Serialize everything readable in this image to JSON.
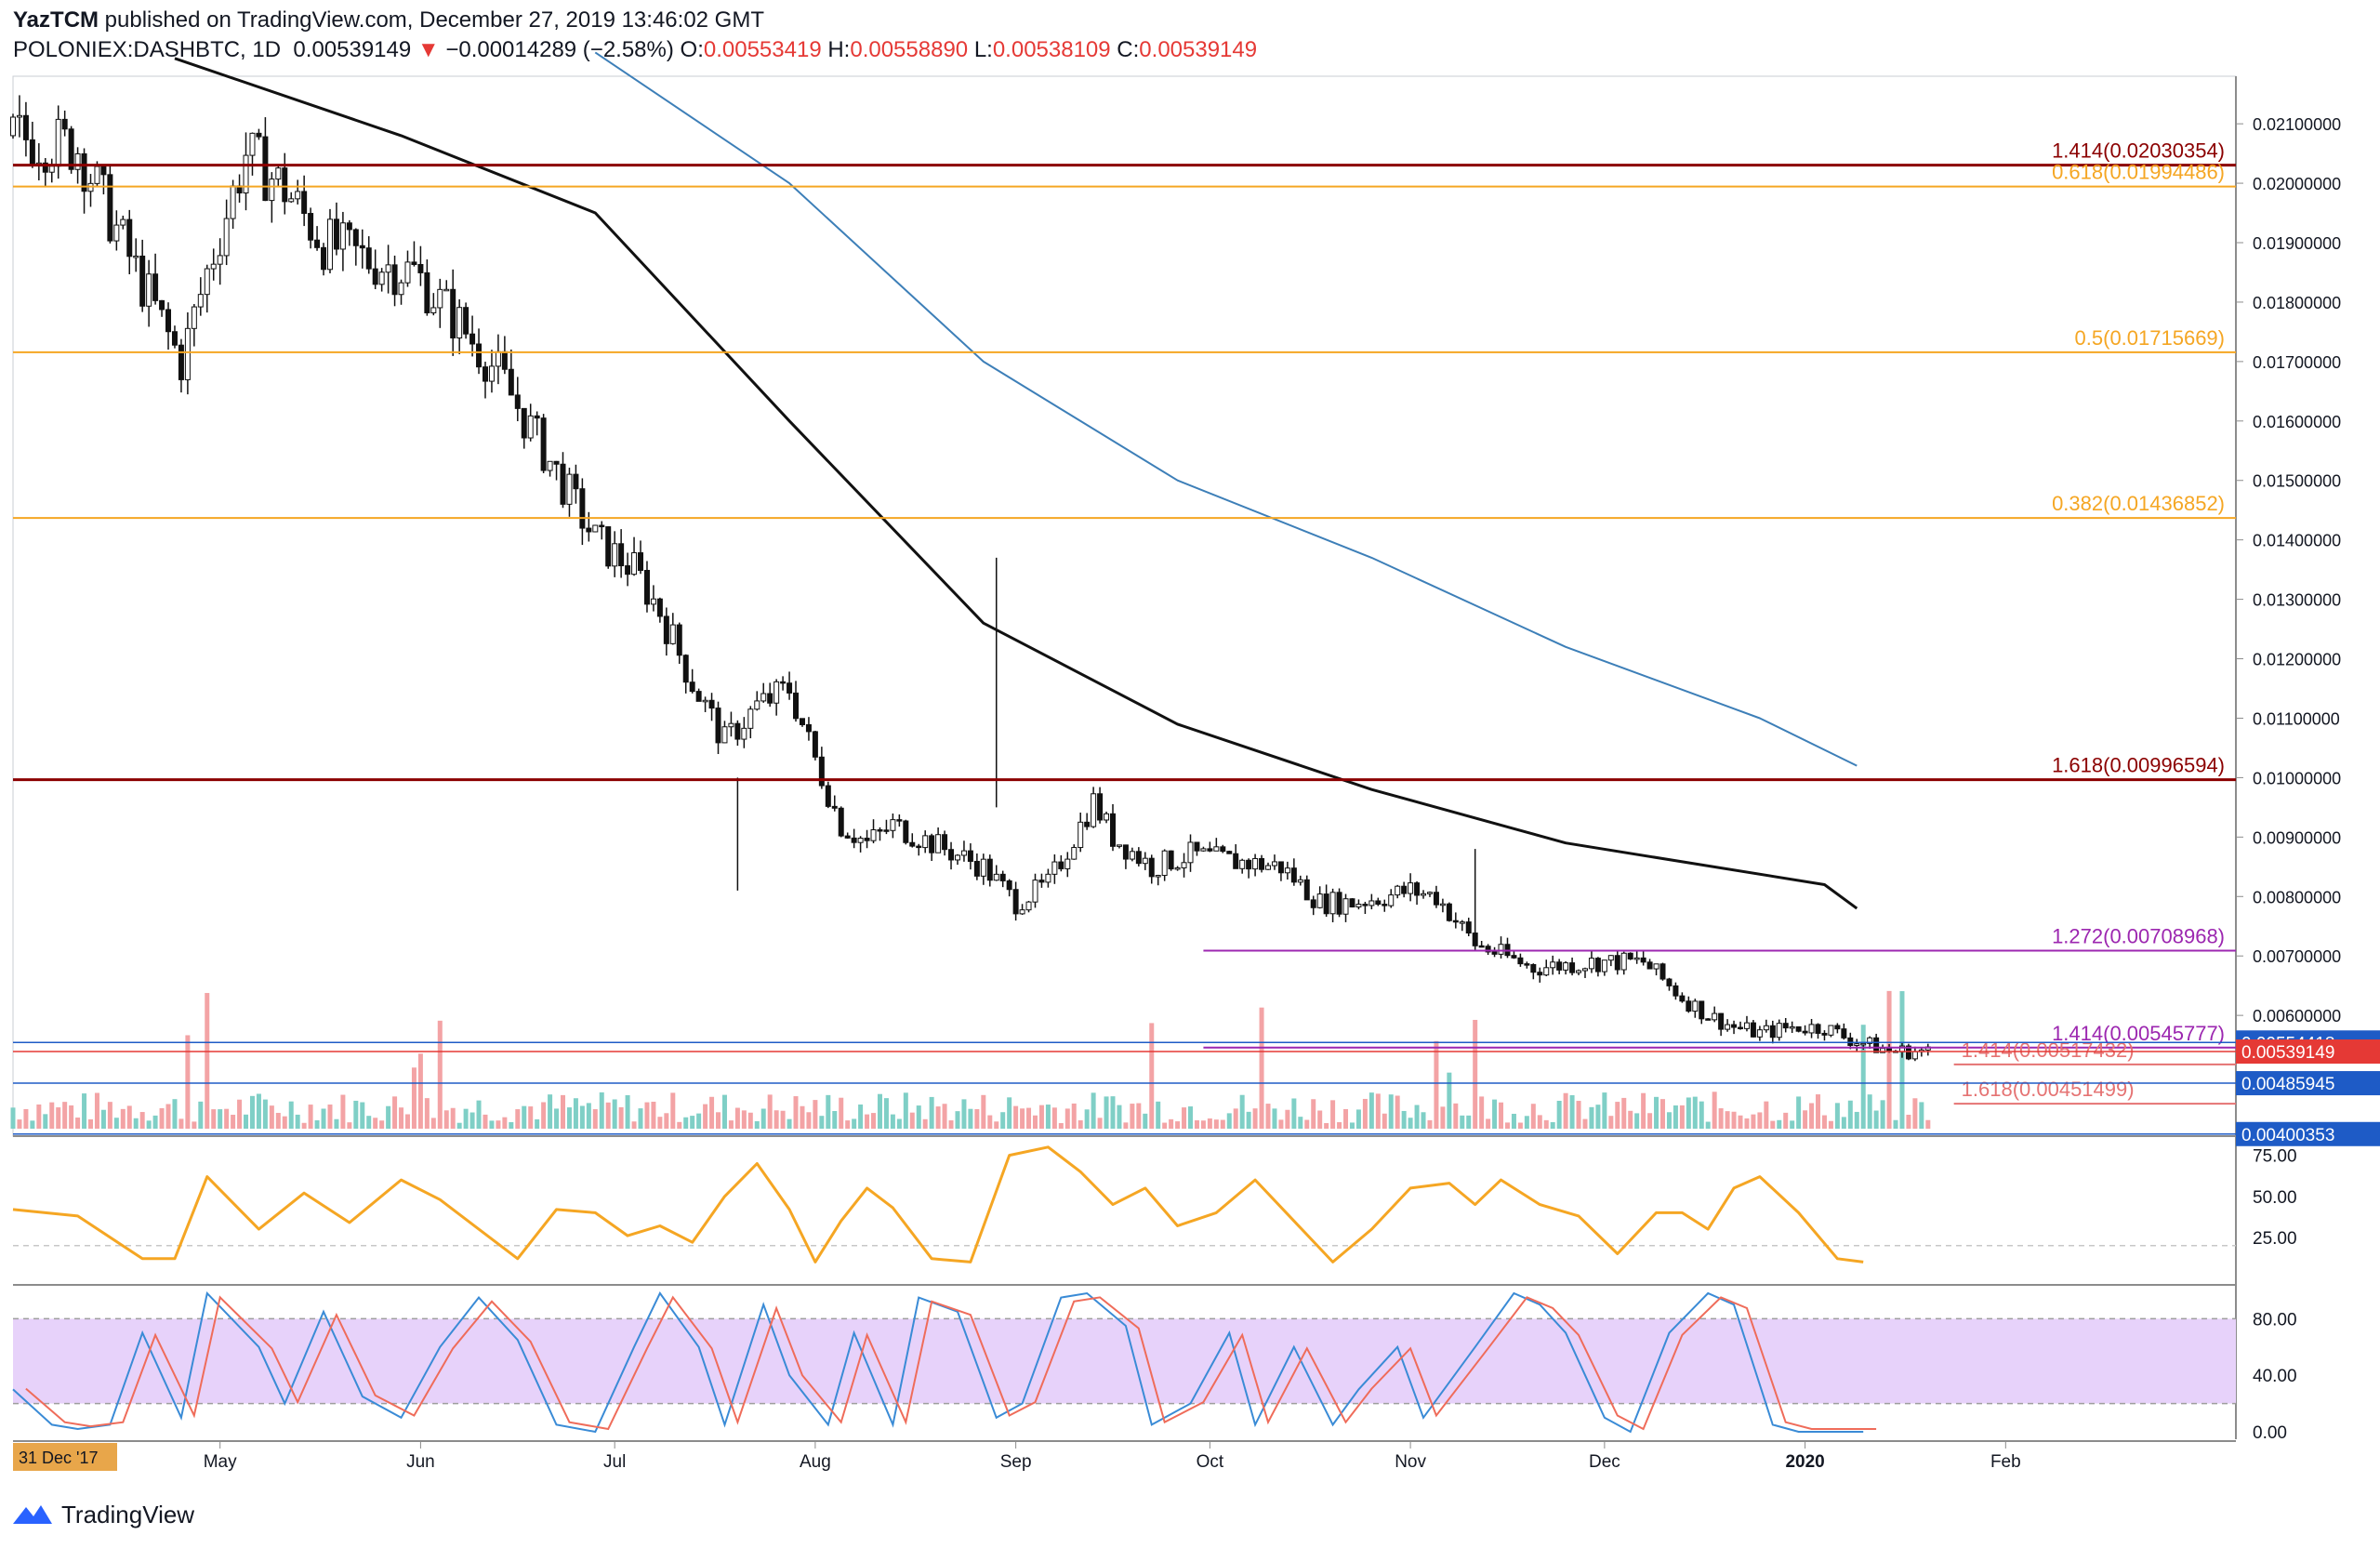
{
  "header": {
    "author": "YazTCM",
    "published": " published on TradingView.com, December 27, 2019 13:46:02 GMT",
    "symbol": "POLONIEX:DASHBTC, 1D",
    "last": "0.00539149",
    "change": "−0.00014289 (−2.58%)",
    "o_label": "O:",
    "o": "0.00553419",
    "h_label": "H:",
    "h": "0.00558890",
    "l_label": "L:",
    "l": "0.00538109",
    "c_label": "C:",
    "c": "0.00539149"
  },
  "footer": {
    "brand": "TradingView",
    "logo_icon": "tradingview-logo-icon"
  },
  "chart_data": {
    "type": "candlestick",
    "xaxis": {
      "start_label": "31 Dec '17",
      "month_labels": [
        "May",
        "Jun",
        "Jul",
        "Aug",
        "Sep",
        "Oct",
        "Nov",
        "Dec",
        "2020",
        "Feb"
      ]
    },
    "price_axis": {
      "ticks": [
        "0.02100000",
        "0.02000000",
        "0.01900000",
        "0.01800000",
        "0.01700000",
        "0.01600000",
        "0.01500000",
        "0.01400000",
        "0.01300000",
        "0.01200000",
        "0.01100000",
        "0.01000000",
        "0.00900000",
        "0.00800000",
        "0.00700000",
        "0.00600000"
      ],
      "tick_values": [
        0.021,
        0.02,
        0.019,
        0.018,
        0.017,
        0.016,
        0.015,
        0.014,
        0.013,
        0.012,
        0.011,
        0.01,
        0.009,
        0.008,
        0.007,
        0.006
      ],
      "range": [
        0.004,
        0.0218
      ],
      "badges": [
        {
          "text": "0.00554418",
          "value": 0.00554418,
          "color": "#1e5bc6"
        },
        {
          "text": "0.00539149",
          "value": 0.00539149,
          "color": "#e53935"
        },
        {
          "text": "0.00485945",
          "value": 0.00485945,
          "color": "#1e5bc6"
        },
        {
          "text": "0.00400353",
          "value": 0.00400353,
          "color": "#1e5bc6"
        }
      ]
    },
    "horizontal_levels": [
      {
        "label": "1.414(0.02030354)",
        "value": 0.02030354,
        "color": "#8b0000",
        "width": 3,
        "label_color": "#8b0000"
      },
      {
        "label": "0.618(0.01994486)",
        "value": 0.01994486,
        "color": "#f5a623",
        "width": 2,
        "label_color": "#f5a623"
      },
      {
        "label": "0.5(0.01715669)",
        "value": 0.01715669,
        "color": "#f5a623",
        "width": 2,
        "label_color": "#f5a623"
      },
      {
        "label": "0.382(0.01436852)",
        "value": 0.01436852,
        "color": "#f5a623",
        "width": 2,
        "label_color": "#f5a623"
      },
      {
        "label": "1.618(0.00996594)",
        "value": 0.00996594,
        "color": "#8b0000",
        "width": 3,
        "label_color": "#8b0000"
      },
      {
        "label": "1.272(0.00708968)",
        "value": 0.00708968,
        "color": "#9c27b0",
        "width": 2,
        "label_color": "#9c27b0",
        "from_day": 184
      },
      {
        "label": "1.414(0.00545777)",
        "value": 0.00545777,
        "color": "#9c27b0",
        "width": 2,
        "label_color": "#9c27b0",
        "from_day": 184
      },
      {
        "label": "1.414(0.00517432)",
        "value": 0.00517432,
        "color": "#e57373",
        "width": 2,
        "label_color": "#e57373",
        "from_day": 300,
        "label_left": true
      },
      {
        "label": "1.618(0.00451499)",
        "value": 0.00451499,
        "color": "#e57373",
        "width": 2,
        "label_color": "#e57373",
        "from_day": 300,
        "label_left": true
      }
    ],
    "close_series": {
      "name": "DASHBTC daily close (approx.)",
      "x_days": [
        0,
        10,
        20,
        26,
        30,
        36,
        42,
        48,
        55,
        62,
        70,
        75,
        82,
        90,
        96,
        100,
        105,
        110,
        115,
        120,
        124,
        128,
        132,
        136,
        140,
        150,
        155,
        160,
        164,
        167,
        170,
        176,
        182,
        188,
        196,
        202,
        207,
        212,
        216,
        220,
        226,
        235,
        245,
        252,
        258,
        262,
        266,
        268,
        270,
        275,
        280,
        284,
        287,
        290,
        296
      ],
      "values": [
        0.0208,
        0.0206,
        0.0183,
        0.017,
        0.0185,
        0.0205,
        0.0199,
        0.019,
        0.0187,
        0.0185,
        0.0175,
        0.0168,
        0.0155,
        0.014,
        0.0135,
        0.0128,
        0.0116,
        0.0106,
        0.0112,
        0.0115,
        0.0103,
        0.0092,
        0.0089,
        0.0092,
        0.009,
        0.0085,
        0.0079,
        0.0082,
        0.009,
        0.0096,
        0.009,
        0.0085,
        0.0087,
        0.0086,
        0.0085,
        0.0079,
        0.0079,
        0.008,
        0.0081,
        0.008,
        0.0072,
        0.0068,
        0.0069,
        0.0069,
        0.0063,
        0.006,
        0.0058,
        0.00575,
        0.0057,
        0.0058,
        0.0058,
        0.0056,
        0.0055,
        0.0054,
        0.00539149
      ]
    },
    "ma_200_black": {
      "x_days": [
        25,
        60,
        90,
        120,
        150,
        180,
        210,
        240,
        280,
        285
      ],
      "values": [
        0.0221,
        0.0208,
        0.0195,
        0.016,
        0.0126,
        0.0109,
        0.0098,
        0.0089,
        0.0082,
        0.0078
      ]
    },
    "ma_blue": {
      "x_days": [
        90,
        120,
        150,
        180,
        210,
        240,
        270,
        285
      ],
      "values": [
        0.0222,
        0.02,
        0.017,
        0.015,
        0.0137,
        0.0122,
        0.011,
        0.0102
      ]
    },
    "rsi": {
      "ticks": [
        "75.00",
        "50.00",
        "25.00"
      ],
      "tick_values": [
        75,
        50,
        25
      ],
      "range": [
        0,
        85
      ],
      "x_days": [
        0,
        10,
        20,
        25,
        30,
        38,
        45,
        52,
        60,
        66,
        72,
        78,
        84,
        90,
        95,
        100,
        105,
        110,
        115,
        120,
        124,
        128,
        132,
        136,
        142,
        148,
        154,
        160,
        165,
        170,
        175,
        180,
        186,
        192,
        198,
        204,
        210,
        216,
        222,
        226,
        230,
        236,
        242,
        248,
        254,
        258,
        262,
        266,
        270,
        276,
        282,
        286
      ],
      "values": [
        42,
        38,
        12,
        12,
        62,
        30,
        52,
        34,
        60,
        48,
        30,
        12,
        42,
        40,
        26,
        32,
        22,
        50,
        70,
        42,
        10,
        35,
        55,
        43,
        12,
        10,
        75,
        80,
        65,
        45,
        55,
        32,
        40,
        60,
        35,
        10,
        30,
        55,
        58,
        45,
        60,
        45,
        38,
        15,
        40,
        40,
        30,
        55,
        62,
        40,
        12,
        10
      ],
      "guide": 20
    },
    "stoch_rsi": {
      "ticks": [
        "80.00",
        "40.00",
        "0.00"
      ],
      "tick_values": [
        80,
        40,
        0
      ],
      "range": [
        0,
        100
      ],
      "band": [
        20,
        80
      ],
      "k_x_days": [
        0,
        6,
        10,
        15,
        20,
        26,
        30,
        38,
        42,
        48,
        54,
        60,
        66,
        72,
        78,
        84,
        90,
        96,
        100,
        106,
        110,
        116,
        120,
        126,
        130,
        136,
        140,
        146,
        152,
        156,
        162,
        166,
        172,
        176,
        182,
        188,
        192,
        198,
        204,
        208,
        214,
        218,
        226,
        232,
        236,
        240,
        246,
        250,
        256,
        262,
        266,
        272,
        276,
        282,
        286
      ],
      "k_values": [
        30,
        5,
        2,
        5,
        70,
        10,
        98,
        60,
        20,
        85,
        25,
        10,
        60,
        95,
        65,
        5,
        0,
        60,
        98,
        60,
        5,
        90,
        40,
        5,
        70,
        5,
        95,
        85,
        10,
        20,
        95,
        98,
        75,
        5,
        20,
        70,
        5,
        60,
        5,
        30,
        60,
        10,
        60,
        98,
        90,
        70,
        10,
        0,
        70,
        98,
        90,
        5,
        0,
        0,
        0
      ]
    }
  }
}
